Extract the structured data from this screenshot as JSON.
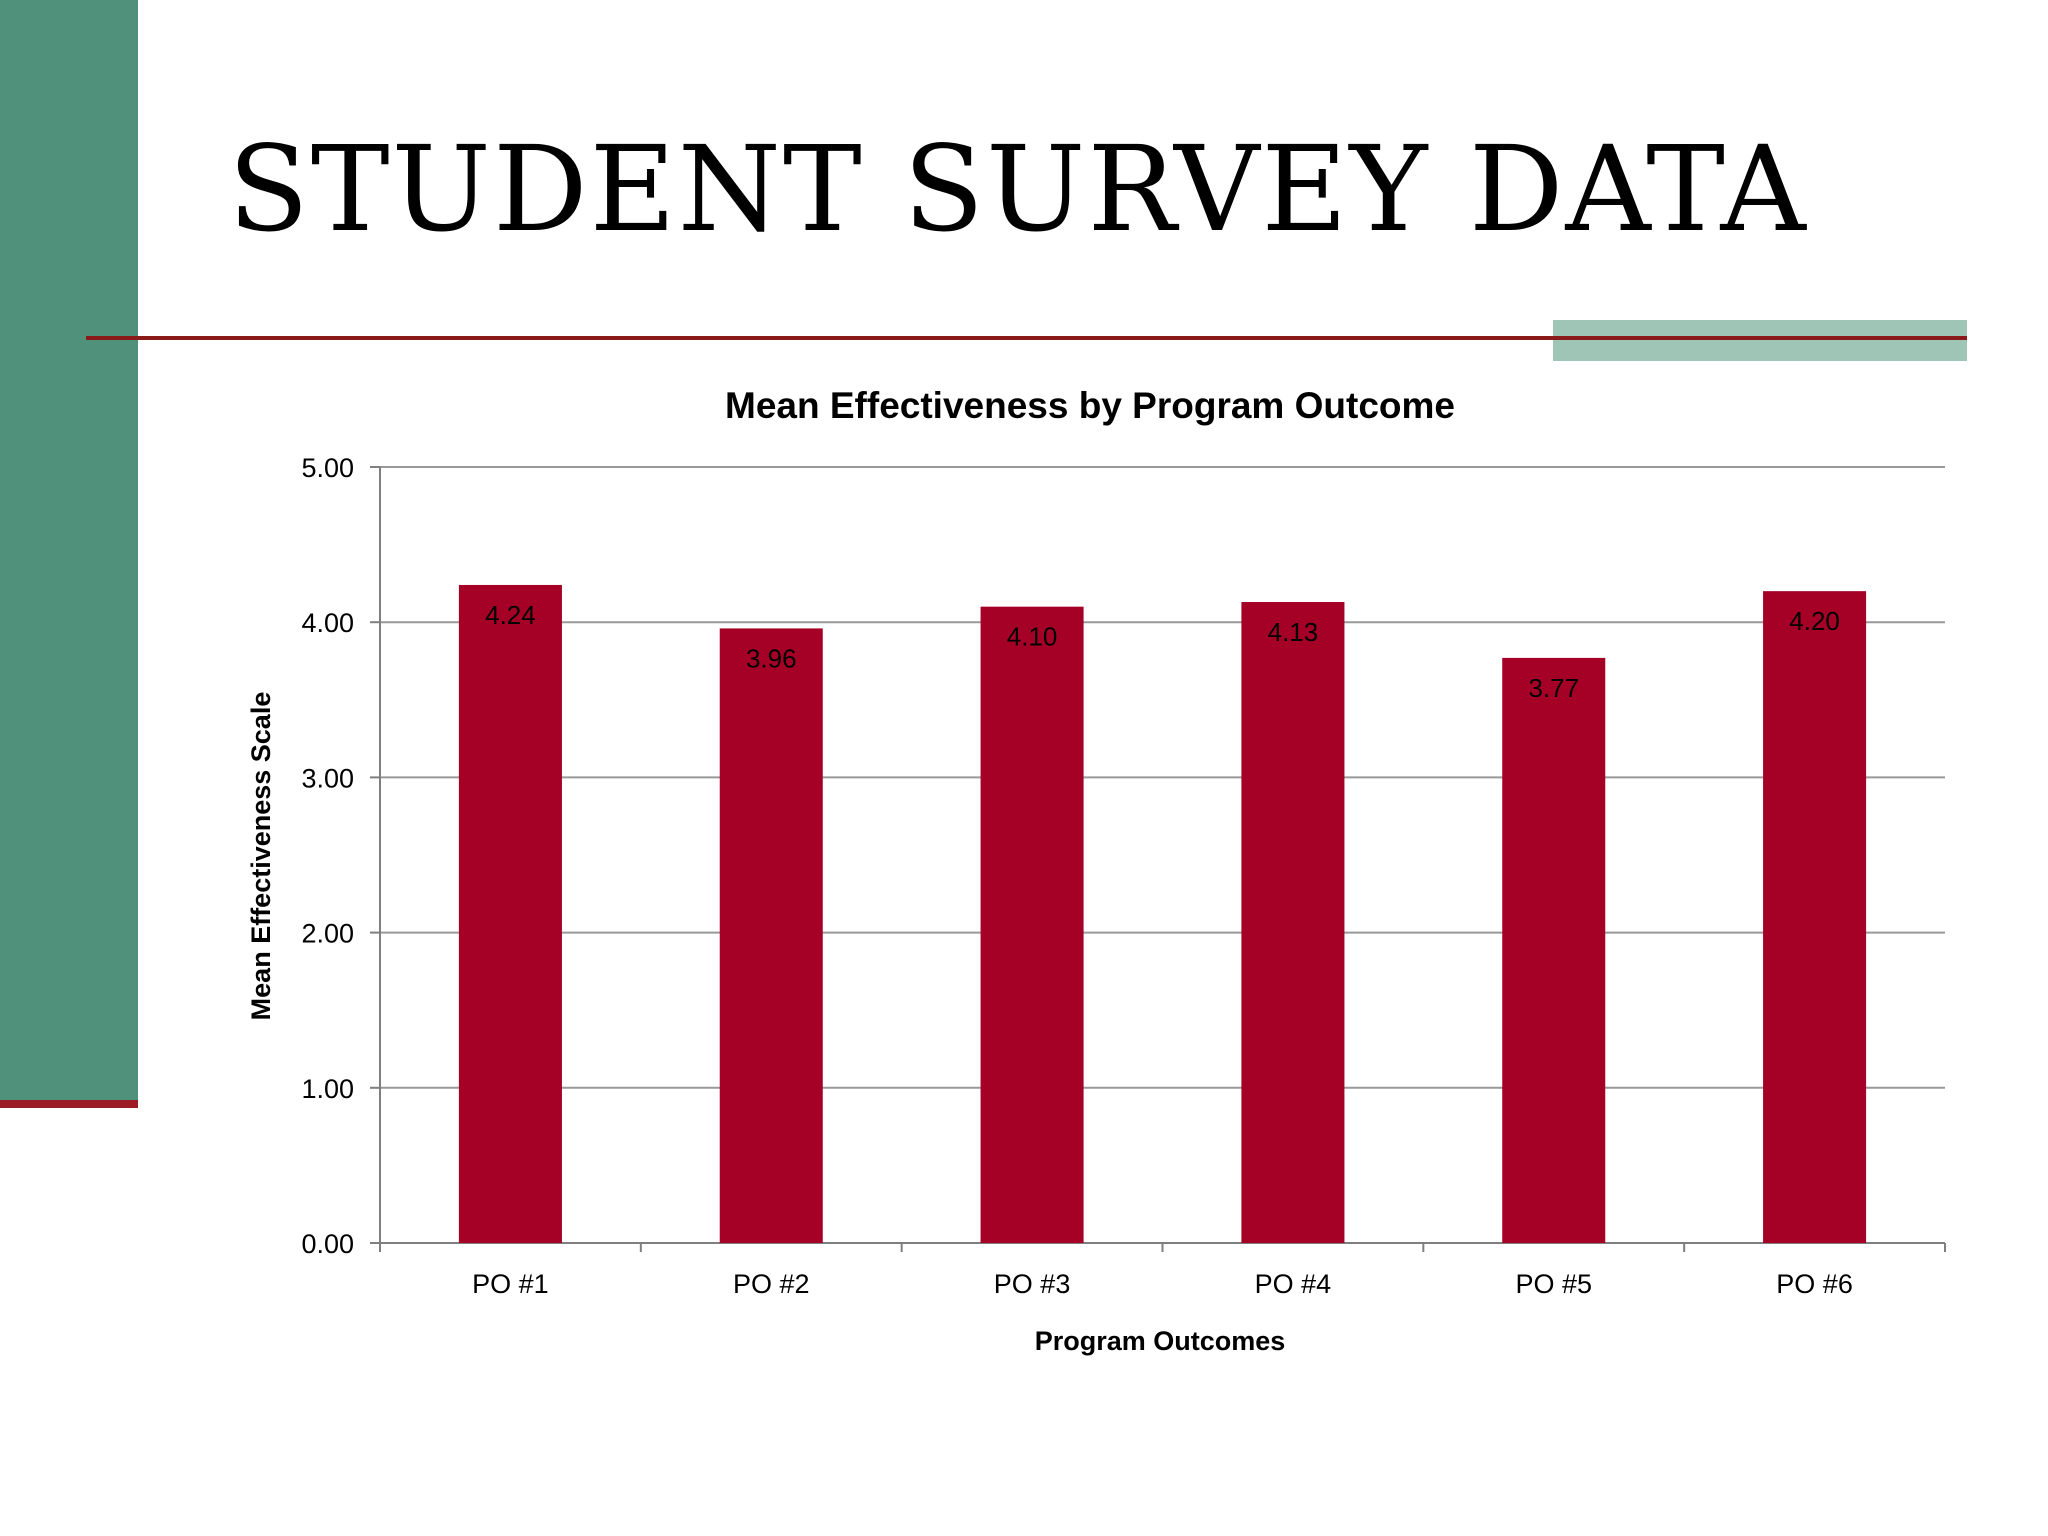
{
  "slide": {
    "title": "STUDENT SURVEY DATA"
  },
  "theme": {
    "sidebar_color": "#4f917a",
    "sidebar_foot_color": "#9b1c22",
    "rule_color": "#8b1a1a",
    "accent_block_color": "#9ec5b5",
    "bar_color": "#a50026",
    "grid_color": "#999999",
    "axis_color": "#7f7f7f"
  },
  "chart_data": {
    "type": "bar",
    "title": "Mean Effectiveness by Program Outcome",
    "xlabel": "Program Outcomes",
    "ylabel": "Mean Effectiveness Scale",
    "categories": [
      "PO #1",
      "PO #2",
      "PO #3",
      "PO #4",
      "PO #5",
      "PO #6"
    ],
    "values": [
      4.24,
      3.96,
      4.1,
      4.13,
      3.77,
      4.2
    ],
    "data_labels": [
      "4.24",
      "3.96",
      "4.10",
      "4.13",
      "3.77",
      "4.20"
    ],
    "ylim": [
      0,
      5
    ],
    "yticks": [
      "0.00",
      "1.00",
      "2.00",
      "3.00",
      "4.00",
      "5.00"
    ],
    "grid": true,
    "legend": "none"
  }
}
